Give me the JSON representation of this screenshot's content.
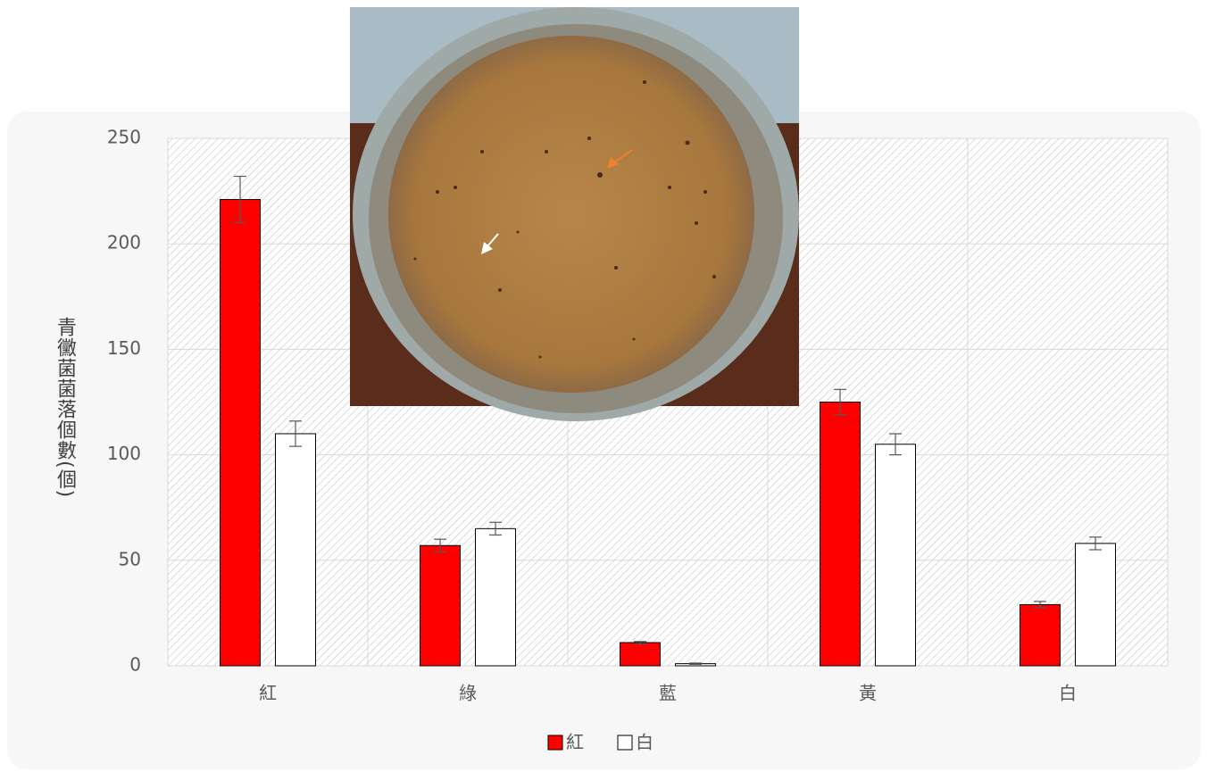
{
  "chart_data": {
    "type": "bar",
    "y_label": "青黴菌菌落個數(個)",
    "categories": [
      "紅",
      "綠",
      "藍",
      "黃",
      "白"
    ],
    "series": [
      {
        "name": "紅",
        "color": "#ff0000",
        "values": [
          221,
          57,
          11,
          125,
          29
        ],
        "errors": [
          11,
          3,
          0.5,
          6,
          1.5
        ]
      },
      {
        "name": "白",
        "color": "#ffffff",
        "values": [
          110,
          65,
          1,
          105,
          58
        ],
        "errors": [
          6,
          3,
          0.3,
          5,
          3
        ]
      }
    ],
    "ylim": [
      0,
      250
    ],
    "yticks": [
      0,
      50,
      100,
      150,
      200,
      250
    ],
    "grid": true
  }
}
